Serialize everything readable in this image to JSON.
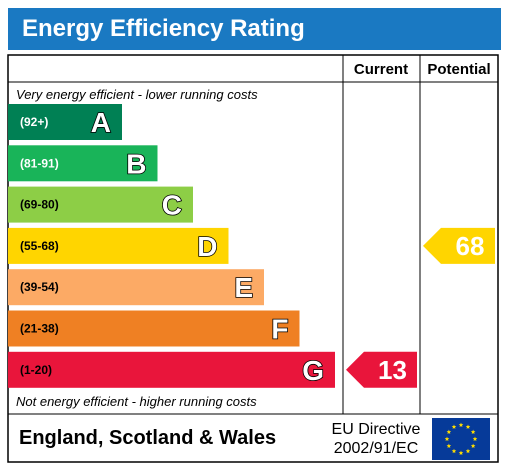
{
  "title": "Energy Efficiency Rating",
  "columns": {
    "current": "Current",
    "potential": "Potential"
  },
  "captions": {
    "top": "Very energy efficient - lower running costs",
    "bottom": "Not energy efficient - higher running costs"
  },
  "footer": {
    "region": "England, Scotland & Wales",
    "directive_line1": "EU Directive",
    "directive_line2": "2002/91/EC"
  },
  "chart_data": {
    "type": "bar",
    "bands": [
      {
        "letter": "A",
        "range": "(92+)",
        "color": "#008054",
        "range_color": "#ffffff"
      },
      {
        "letter": "B",
        "range": "(81-91)",
        "color": "#19b459",
        "range_color": "#ffffff"
      },
      {
        "letter": "C",
        "range": "(69-80)",
        "color": "#8dce46",
        "range_color": "#000000"
      },
      {
        "letter": "D",
        "range": "(55-68)",
        "color": "#ffd500",
        "range_color": "#000000"
      },
      {
        "letter": "E",
        "range": "(39-54)",
        "color": "#fcaa65",
        "range_color": "#000000"
      },
      {
        "letter": "F",
        "range": "(21-38)",
        "color": "#ef8023",
        "range_color": "#000000"
      },
      {
        "letter": "G",
        "range": "(1-20)",
        "color": "#e9153b",
        "range_color": "#000000"
      }
    ],
    "current": {
      "value": 13,
      "band": "G",
      "color": "#e9153b"
    },
    "potential": {
      "value": 68,
      "band": "D",
      "color": "#ffd500"
    }
  }
}
